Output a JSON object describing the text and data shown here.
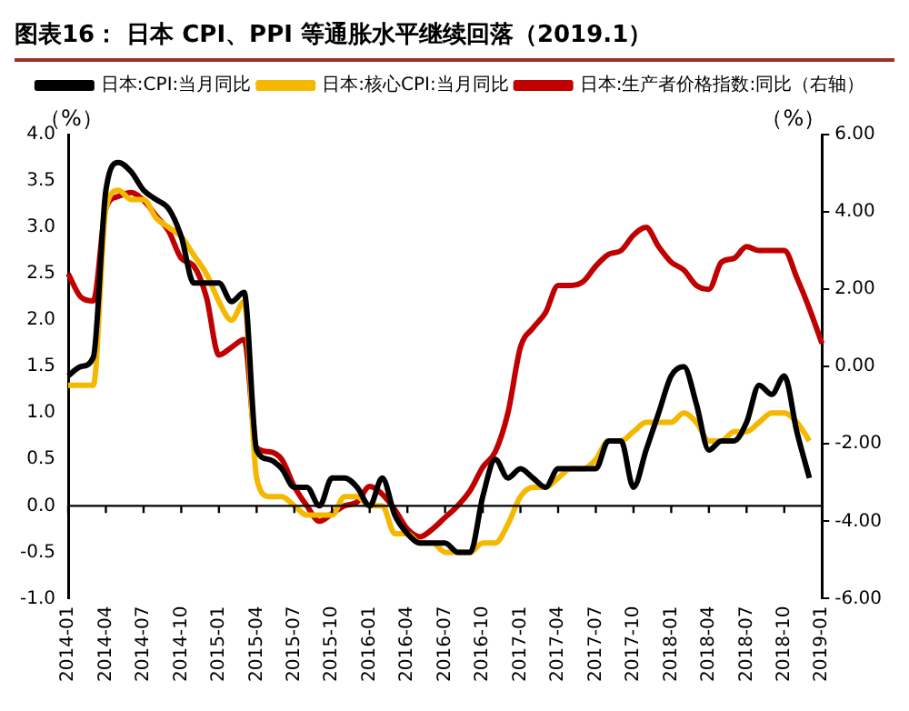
{
  "chart_data": {
    "type": "line",
    "title": "图表16：  日本 CPI、PPI 等通胀水平继续回落（2019.1）",
    "ylabel": "（%）",
    "y2label": "（%）",
    "categories": [
      "2014-01",
      null,
      null,
      "2014-04",
      null,
      null,
      "2014-07",
      null,
      null,
      "2014-10",
      null,
      null,
      "2015-01",
      null,
      null,
      "2015-04",
      null,
      null,
      "2015-07",
      null,
      null,
      "2015-10",
      null,
      null,
      "2016-01",
      null,
      null,
      "2016-04",
      null,
      null,
      "2016-07",
      null,
      null,
      "2016-10",
      null,
      null,
      "2017-01",
      null,
      null,
      "2017-04",
      null,
      null,
      "2017-07",
      null,
      null,
      "2017-10",
      null,
      null,
      "2018-01",
      null,
      null,
      "2018-04",
      null,
      null,
      "2018-07",
      null,
      null,
      "2018-10",
      null,
      null,
      "2019-01"
    ],
    "series": [
      {
        "name": "日本:CPI:当月同比",
        "color": "#000000",
        "values": [
          1.4,
          1.5,
          1.6,
          3.4,
          3.7,
          3.6,
          3.4,
          3.3,
          3.2,
          2.9,
          2.4,
          2.4,
          2.4,
          2.2,
          2.3,
          0.6,
          0.5,
          0.4,
          0.2,
          0.2,
          0.0,
          0.3,
          0.3,
          0.2,
          0.0,
          0.3,
          -0.1,
          -0.3,
          -0.4,
          -0.4,
          -0.4,
          -0.5,
          -0.5,
          0.1,
          0.5,
          0.3,
          0.4,
          0.3,
          0.2,
          0.4,
          0.4,
          0.4,
          0.4,
          0.7,
          0.7,
          0.2,
          0.6,
          1.0,
          1.4,
          1.5,
          1.1,
          0.6,
          0.7,
          0.7,
          0.9,
          1.3,
          1.2,
          1.4,
          0.8,
          0.3,
          null
        ]
      },
      {
        "name": "日本:核心CPI:当月同比",
        "color": "#f5b800",
        "values": [
          1.3,
          1.3,
          1.3,
          3.2,
          3.4,
          3.3,
          3.3,
          3.1,
          3.0,
          2.9,
          2.7,
          2.5,
          2.2,
          2.0,
          2.2,
          0.3,
          0.1,
          0.1,
          0.0,
          -0.1,
          -0.1,
          -0.1,
          0.1,
          0.1,
          0.0,
          0.0,
          -0.3,
          -0.3,
          -0.4,
          -0.4,
          -0.5,
          -0.5,
          -0.5,
          -0.4,
          -0.4,
          -0.2,
          0.1,
          0.2,
          0.2,
          0.3,
          0.4,
          0.4,
          0.5,
          0.7,
          0.7,
          0.8,
          0.9,
          0.9,
          0.9,
          1.0,
          0.9,
          0.7,
          0.7,
          0.8,
          0.8,
          0.9,
          1.0,
          1.0,
          0.9,
          0.7,
          null
        ]
      },
      {
        "name": "日本:生产者价格指数:同比（右轴）",
        "color": "#c00000",
        "axis": "y2",
        "values": [
          2.4,
          1.8,
          1.7,
          4.1,
          4.4,
          4.5,
          4.3,
          3.9,
          3.5,
          2.8,
          2.6,
          1.8,
          0.3,
          0.5,
          0.7,
          -2.1,
          -2.2,
          -2.4,
          -3.1,
          -3.6,
          -4.0,
          -3.8,
          -3.6,
          -3.5,
          -3.1,
          -3.3,
          -3.7,
          -4.2,
          -4.4,
          -4.2,
          -3.9,
          -3.6,
          -3.2,
          -2.6,
          -2.2,
          -1.2,
          0.5,
          1.0,
          1.4,
          2.1,
          2.1,
          2.2,
          2.6,
          2.9,
          3.0,
          3.4,
          3.6,
          3.1,
          2.7,
          2.5,
          2.1,
          2.0,
          2.7,
          2.8,
          3.1,
          3.0,
          3.0,
          3.0,
          2.3,
          1.5,
          0.6
        ]
      }
    ],
    "ylim": [
      -1,
      4
    ],
    "yticks": [
      {
        "value": -1,
        "label": "-1.0"
      },
      {
        "value": -0.5,
        "label": "-0.5"
      },
      {
        "value": 0,
        "label": "0.0"
      },
      {
        "value": 0.5,
        "label": "0.5"
      },
      {
        "value": 1,
        "label": "1.0"
      },
      {
        "value": 1.5,
        "label": "1.5"
      },
      {
        "value": 2,
        "label": "2.0"
      },
      {
        "value": 2.5,
        "label": "2.5"
      },
      {
        "value": 3,
        "label": "3.0"
      },
      {
        "value": 3.5,
        "label": "3.5"
      },
      {
        "value": 4,
        "label": "4.0"
      }
    ],
    "y2lim": [
      -6,
      6
    ],
    "y2ticks": [
      {
        "value": -6,
        "label": "-6.00"
      },
      {
        "value": -4,
        "label": "-4.00"
      },
      {
        "value": -2,
        "label": "-2.00"
      },
      {
        "value": 0,
        "label": "0.00"
      },
      {
        "value": 2,
        "label": "2.00"
      },
      {
        "value": 4,
        "label": "4.00"
      },
      {
        "value": 6,
        "label": "6.00"
      }
    ],
    "ref_lines": [
      {
        "axis": "y",
        "value": 0,
        "color": "#000000"
      }
    ],
    "grid": false,
    "legend": "top",
    "marker": "none",
    "line_style": "solid"
  }
}
